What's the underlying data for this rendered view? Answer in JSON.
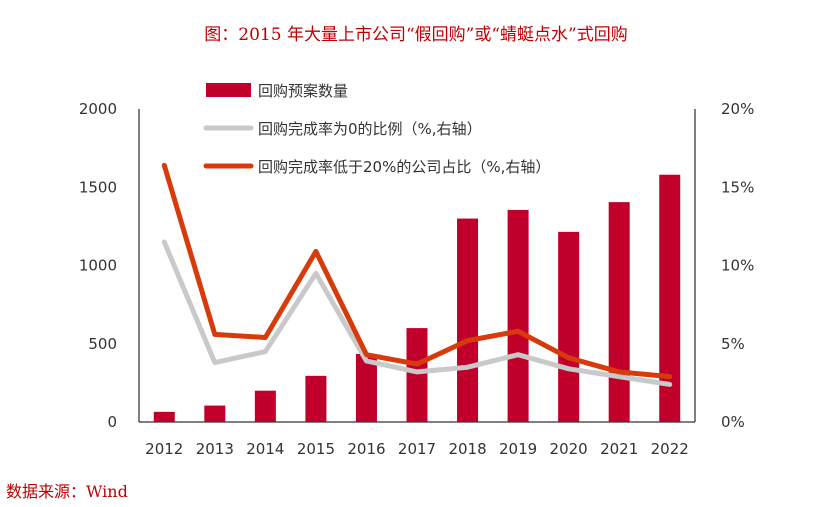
{
  "title": "图：2015 年大量上市公司“假回购”或“蜻蜓点水”式回购",
  "source": "数据来源：Wind",
  "chart_data": {
    "type": "bar+line",
    "categories": [
      "2012",
      "2013",
      "2014",
      "2015",
      "2016",
      "2017",
      "2018",
      "2019",
      "2020",
      "2021",
      "2022"
    ],
    "y_left": {
      "range": [
        0,
        2000
      ],
      "ticks": [
        "0",
        "500",
        "1000",
        "1500",
        "2000"
      ]
    },
    "y_right": {
      "range": [
        0,
        20
      ],
      "ticks": [
        "0%",
        "5%",
        "10%",
        "15%",
        "20%"
      ]
    },
    "legend_position": "top-left",
    "series": [
      {
        "name": "回购预案数量",
        "type": "bar",
        "axis": "left",
        "color": "#C0002B",
        "values": [
          65,
          105,
          200,
          295,
          435,
          600,
          1300,
          1355,
          1215,
          1405,
          1580
        ]
      },
      {
        "name": "回购完成率为0的比例（%,右轴）",
        "type": "line",
        "axis": "right",
        "color": "#C9C9C9",
        "values": [
          11.5,
          3.8,
          4.5,
          9.5,
          3.9,
          3.2,
          3.5,
          4.3,
          3.4,
          2.9,
          2.4
        ]
      },
      {
        "name": "回购完成率低于20%的公司占比（%,右轴）",
        "type": "line",
        "axis": "right",
        "color": "#D83B0B",
        "values": [
          16.4,
          5.6,
          5.4,
          10.9,
          4.3,
          3.7,
          5.2,
          5.8,
          4.1,
          3.2,
          2.9
        ]
      }
    ]
  }
}
